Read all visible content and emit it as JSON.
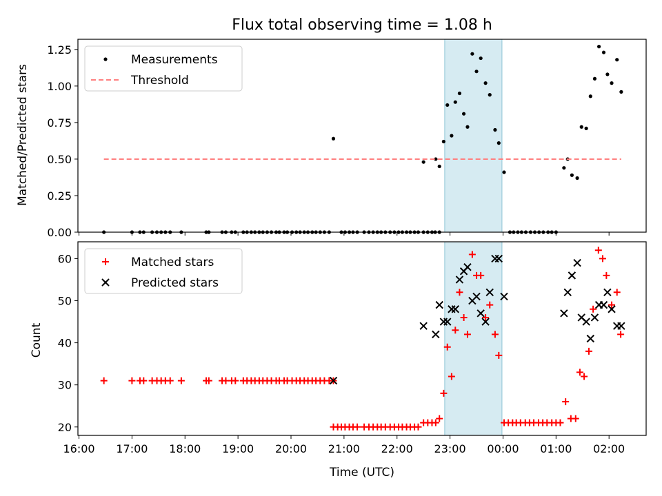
{
  "title": "Flux total observing time = 1.08 h",
  "colors": {
    "measurement": "#000000",
    "threshold": "#ff7f7f",
    "matched": "#ff0000",
    "predicted": "#000000",
    "highlight": "#add8e6"
  },
  "chart_data": [
    {
      "type": "scatter",
      "ylabel": "Matched/Predicted stars",
      "ylim": [
        0,
        1.32
      ],
      "yticks": [
        0,
        0.25,
        0.5,
        0.75,
        1.0,
        1.25
      ],
      "ytick_labels": [
        "0.00",
        "0.25",
        "0.50",
        "0.75",
        "1.00",
        "1.25"
      ],
      "xlim": [
        15.98,
        26.7
      ],
      "highlight_span": [
        22.9,
        23.98
      ],
      "legend": {
        "position": "top-left",
        "entries": [
          "Measurements",
          "Threshold"
        ]
      },
      "series": [
        {
          "name": "Measurements",
          "marker": "dot",
          "points": [
            [
              16.47,
              0
            ],
            [
              17.0,
              0
            ],
            [
              17.15,
              0
            ],
            [
              17.22,
              0
            ],
            [
              17.38,
              0
            ],
            [
              17.47,
              0
            ],
            [
              17.55,
              0
            ],
            [
              17.63,
              0
            ],
            [
              17.72,
              0
            ],
            [
              17.93,
              0
            ],
            [
              18.4,
              0
            ],
            [
              18.45,
              0
            ],
            [
              18.7,
              0
            ],
            [
              18.77,
              0
            ],
            [
              18.88,
              0
            ],
            [
              18.95,
              0
            ],
            [
              19.1,
              0
            ],
            [
              19.17,
              0
            ],
            [
              19.25,
              0
            ],
            [
              19.32,
              0
            ],
            [
              19.4,
              0
            ],
            [
              19.47,
              0
            ],
            [
              19.55,
              0
            ],
            [
              19.63,
              0
            ],
            [
              19.72,
              0
            ],
            [
              19.78,
              0
            ],
            [
              19.87,
              0
            ],
            [
              19.93,
              0
            ],
            [
              20.02,
              0
            ],
            [
              20.1,
              0
            ],
            [
              20.17,
              0
            ],
            [
              20.25,
              0
            ],
            [
              20.32,
              0
            ],
            [
              20.4,
              0
            ],
            [
              20.47,
              0
            ],
            [
              20.55,
              0
            ],
            [
              20.63,
              0
            ],
            [
              20.72,
              0
            ],
            [
              20.95,
              0
            ],
            [
              21.02,
              0
            ],
            [
              21.1,
              0
            ],
            [
              21.17,
              0
            ],
            [
              21.25,
              0
            ],
            [
              21.38,
              0
            ],
            [
              21.47,
              0
            ],
            [
              21.55,
              0
            ],
            [
              21.63,
              0
            ],
            [
              21.7,
              0
            ],
            [
              21.78,
              0
            ],
            [
              21.87,
              0
            ],
            [
              21.95,
              0
            ],
            [
              22.03,
              0
            ],
            [
              22.1,
              0
            ],
            [
              22.18,
              0
            ],
            [
              22.25,
              0
            ],
            [
              22.33,
              0
            ],
            [
              22.4,
              0
            ],
            [
              22.5,
              0
            ],
            [
              22.58,
              0
            ],
            [
              22.66,
              0
            ],
            [
              22.72,
              0
            ],
            [
              22.8,
              0
            ],
            [
              20.8,
              0.64
            ],
            [
              22.5,
              0.48
            ],
            [
              22.73,
              0.5
            ],
            [
              22.8,
              0.45
            ],
            [
              22.88,
              0.62
            ],
            [
              22.95,
              0.87
            ],
            [
              23.03,
              0.66
            ],
            [
              23.1,
              0.89
            ],
            [
              23.18,
              0.95
            ],
            [
              23.26,
              0.81
            ],
            [
              23.33,
              0.72
            ],
            [
              23.42,
              1.22
            ],
            [
              23.5,
              1.1
            ],
            [
              23.58,
              1.19
            ],
            [
              23.67,
              1.02
            ],
            [
              23.75,
              0.94
            ],
            [
              23.85,
              0.7
            ],
            [
              23.92,
              0.61
            ],
            [
              24.02,
              0.41
            ],
            [
              24.13,
              0
            ],
            [
              24.2,
              0
            ],
            [
              24.28,
              0
            ],
            [
              24.35,
              0
            ],
            [
              24.43,
              0
            ],
            [
              24.52,
              0
            ],
            [
              24.6,
              0
            ],
            [
              24.68,
              0
            ],
            [
              24.76,
              0
            ],
            [
              24.85,
              0
            ],
            [
              24.92,
              0
            ],
            [
              25.0,
              0
            ],
            [
              25.15,
              0.44
            ],
            [
              25.22,
              0.5
            ],
            [
              25.3,
              0.39
            ],
            [
              25.4,
              0.37
            ],
            [
              25.48,
              0.72
            ],
            [
              25.57,
              0.71
            ],
            [
              25.65,
              0.93
            ],
            [
              25.73,
              1.05
            ],
            [
              25.81,
              1.27
            ],
            [
              25.9,
              1.23
            ],
            [
              25.97,
              1.08
            ],
            [
              26.05,
              1.02
            ],
            [
              26.15,
              1.18
            ],
            [
              26.23,
              0.96
            ]
          ]
        },
        {
          "name": "Threshold",
          "marker": "dashed-line",
          "points": [
            [
              16.47,
              0.5
            ],
            [
              26.23,
              0.5
            ]
          ]
        }
      ]
    },
    {
      "type": "scatter",
      "ylabel": "Count",
      "xlabel": "Time (UTC)",
      "ylim": [
        18,
        64
      ],
      "yticks": [
        20,
        30,
        40,
        50,
        60
      ],
      "ytick_labels": [
        "20",
        "30",
        "40",
        "50",
        "60"
      ],
      "xlim": [
        15.98,
        26.7
      ],
      "xticks": [
        16,
        17,
        18,
        19,
        20,
        21,
        22,
        23,
        24,
        25,
        26
      ],
      "xtick_labels": [
        "16:00",
        "17:00",
        "18:00",
        "19:00",
        "20:00",
        "21:00",
        "22:00",
        "23:00",
        "00:00",
        "01:00",
        "02:00"
      ],
      "highlight_span": [
        22.9,
        23.98
      ],
      "legend": {
        "position": "top-left",
        "entries": [
          "Matched stars",
          "Predicted stars"
        ]
      },
      "series": [
        {
          "name": "Matched stars",
          "marker": "plus",
          "points": [
            [
              16.47,
              31
            ],
            [
              17.0,
              31
            ],
            [
              17.15,
              31
            ],
            [
              17.22,
              31
            ],
            [
              17.38,
              31
            ],
            [
              17.47,
              31
            ],
            [
              17.55,
              31
            ],
            [
              17.63,
              31
            ],
            [
              17.72,
              31
            ],
            [
              17.93,
              31
            ],
            [
              18.4,
              31
            ],
            [
              18.45,
              31
            ],
            [
              18.7,
              31
            ],
            [
              18.77,
              31
            ],
            [
              18.88,
              31
            ],
            [
              18.95,
              31
            ],
            [
              19.1,
              31
            ],
            [
              19.17,
              31
            ],
            [
              19.25,
              31
            ],
            [
              19.32,
              31
            ],
            [
              19.4,
              31
            ],
            [
              19.47,
              31
            ],
            [
              19.55,
              31
            ],
            [
              19.63,
              31
            ],
            [
              19.72,
              31
            ],
            [
              19.78,
              31
            ],
            [
              19.87,
              31
            ],
            [
              19.93,
              31
            ],
            [
              20.02,
              31
            ],
            [
              20.1,
              31
            ],
            [
              20.17,
              31
            ],
            [
              20.25,
              31
            ],
            [
              20.32,
              31
            ],
            [
              20.4,
              31
            ],
            [
              20.47,
              31
            ],
            [
              20.55,
              31
            ],
            [
              20.63,
              31
            ],
            [
              20.72,
              31
            ],
            [
              20.8,
              31
            ],
            [
              20.8,
              20
            ],
            [
              20.88,
              20
            ],
            [
              20.95,
              20
            ],
            [
              21.02,
              20
            ],
            [
              21.1,
              20
            ],
            [
              21.17,
              20
            ],
            [
              21.25,
              20
            ],
            [
              21.38,
              20
            ],
            [
              21.47,
              20
            ],
            [
              21.55,
              20
            ],
            [
              21.63,
              20
            ],
            [
              21.7,
              20
            ],
            [
              21.78,
              20
            ],
            [
              21.87,
              20
            ],
            [
              21.95,
              20
            ],
            [
              22.03,
              20
            ],
            [
              22.1,
              20
            ],
            [
              22.18,
              20
            ],
            [
              22.25,
              20
            ],
            [
              22.33,
              20
            ],
            [
              22.4,
              20
            ],
            [
              22.5,
              21
            ],
            [
              22.58,
              21
            ],
            [
              22.66,
              21
            ],
            [
              22.73,
              21
            ],
            [
              22.8,
              22
            ],
            [
              22.88,
              28
            ],
            [
              22.95,
              39
            ],
            [
              23.03,
              32
            ],
            [
              23.1,
              43
            ],
            [
              23.18,
              52
            ],
            [
              23.26,
              46
            ],
            [
              23.33,
              42
            ],
            [
              23.42,
              61
            ],
            [
              23.5,
              56
            ],
            [
              23.58,
              56
            ],
            [
              23.67,
              46
            ],
            [
              23.75,
              49
            ],
            [
              23.85,
              42
            ],
            [
              23.92,
              37
            ],
            [
              24.02,
              21
            ],
            [
              24.1,
              21
            ],
            [
              24.18,
              21
            ],
            [
              24.25,
              21
            ],
            [
              24.33,
              21
            ],
            [
              24.42,
              21
            ],
            [
              24.5,
              21
            ],
            [
              24.58,
              21
            ],
            [
              24.67,
              21
            ],
            [
              24.75,
              21
            ],
            [
              24.83,
              21
            ],
            [
              24.92,
              21
            ],
            [
              25.0,
              21
            ],
            [
              25.08,
              21
            ],
            [
              25.18,
              26
            ],
            [
              25.28,
              22
            ],
            [
              25.37,
              22
            ],
            [
              25.45,
              33
            ],
            [
              25.53,
              32
            ],
            [
              25.62,
              38
            ],
            [
              25.7,
              48
            ],
            [
              25.8,
              62
            ],
            [
              25.88,
              60
            ],
            [
              25.95,
              56
            ],
            [
              26.05,
              49
            ],
            [
              26.15,
              52
            ],
            [
              26.22,
              42
            ]
          ]
        },
        {
          "name": "Predicted stars",
          "marker": "x",
          "points": [
            [
              20.8,
              31
            ],
            [
              22.5,
              44
            ],
            [
              22.73,
              42
            ],
            [
              22.8,
              49
            ],
            [
              22.88,
              45
            ],
            [
              22.95,
              45
            ],
            [
              23.03,
              48
            ],
            [
              23.1,
              48
            ],
            [
              23.18,
              55
            ],
            [
              23.26,
              57
            ],
            [
              23.33,
              58
            ],
            [
              23.42,
              50
            ],
            [
              23.5,
              51
            ],
            [
              23.58,
              47
            ],
            [
              23.67,
              45
            ],
            [
              23.75,
              52
            ],
            [
              23.85,
              60
            ],
            [
              23.92,
              60
            ],
            [
              24.02,
              51
            ],
            [
              25.15,
              47
            ],
            [
              25.22,
              52
            ],
            [
              25.3,
              56
            ],
            [
              25.4,
              59
            ],
            [
              25.48,
              46
            ],
            [
              25.57,
              45
            ],
            [
              25.65,
              41
            ],
            [
              25.73,
              46
            ],
            [
              25.81,
              49
            ],
            [
              25.9,
              49
            ],
            [
              25.97,
              52
            ],
            [
              26.05,
              48
            ],
            [
              26.15,
              44
            ],
            [
              26.23,
              44
            ]
          ]
        }
      ]
    }
  ]
}
